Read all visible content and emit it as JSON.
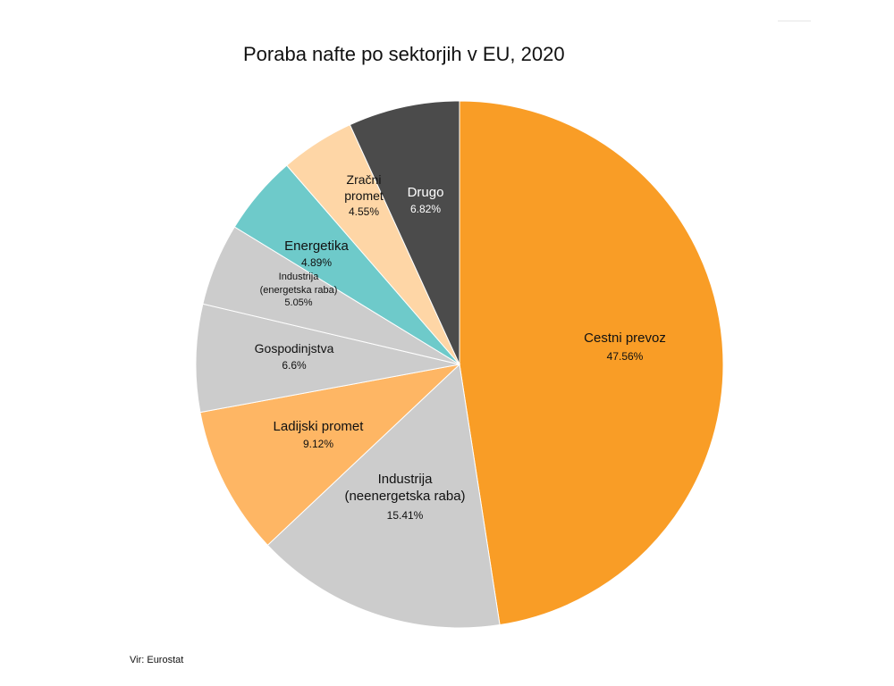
{
  "chart_data": {
    "type": "pie",
    "title": "Poraba nafte po sektorjih v EU, 2020",
    "slices": [
      {
        "name": "Cestni prevoz",
        "lines": [
          "Cestni prevoz"
        ],
        "value": 47.56,
        "label": "47.56%",
        "color": "#f99d26"
      },
      {
        "name": "Industrija (neenergetska raba)",
        "lines": [
          "Industrija",
          "(neenergetska raba)"
        ],
        "value": 15.41,
        "label": "15.41%",
        "color": "#cccccc"
      },
      {
        "name": "Ladijski promet",
        "lines": [
          "Ladijski promet"
        ],
        "value": 9.12,
        "label": "9.12%",
        "color": "#feb664"
      },
      {
        "name": "Gospodinjstva",
        "lines": [
          "Gospodinjstva"
        ],
        "value": 6.6,
        "label": "6.6%",
        "color": "#cccccc"
      },
      {
        "name": "Industrija (energetska raba)",
        "lines": [
          "Industrija",
          "(energetska raba)"
        ],
        "value": 5.05,
        "label": "5.05%",
        "color": "#cccccc"
      },
      {
        "name": "Energetika",
        "lines": [
          "Energetika"
        ],
        "value": 4.89,
        "label": "4.89%",
        "color": "#6ecaca"
      },
      {
        "name": "Zračni promet",
        "lines": [
          "Zračni",
          "promet"
        ],
        "value": 4.55,
        "label": "4.55%",
        "color": "#fed6a6"
      },
      {
        "name": "Drugo",
        "lines": [
          "Drugo"
        ],
        "value": 6.82,
        "label": "6.82%",
        "color": "#4b4b4b"
      }
    ]
  },
  "source": "Vir: Eurostat"
}
